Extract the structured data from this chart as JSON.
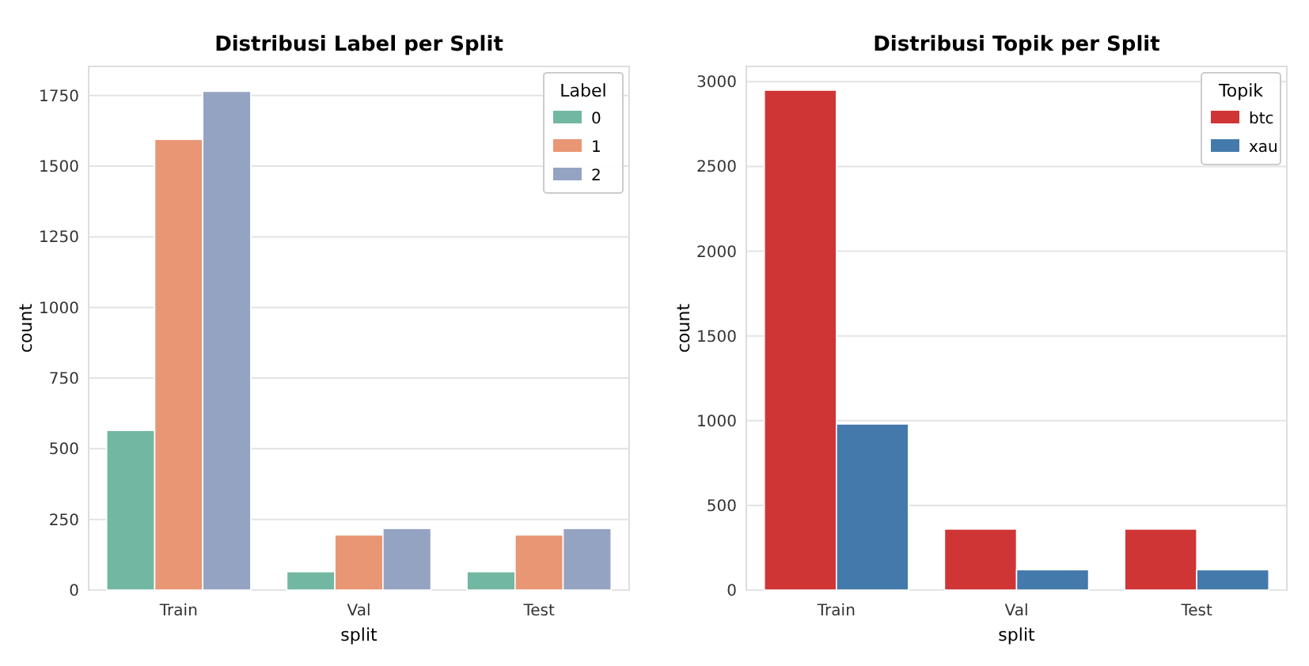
{
  "chart_data": [
    {
      "type": "bar",
      "title": "Distribusi Label per Split",
      "xlabel": "split",
      "ylabel": "count",
      "legend_title": "Label",
      "categories": [
        "Train",
        "Val",
        "Test"
      ],
      "series": [
        {
          "name": "0",
          "color": "#72b7a1",
          "values": [
            565,
            65,
            65
          ]
        },
        {
          "name": "1",
          "color": "#e99675",
          "values": [
            1595,
            195,
            195
          ]
        },
        {
          "name": "2",
          "color": "#95a3c3",
          "values": [
            1765,
            218,
            218
          ]
        }
      ],
      "ylim": [
        0,
        1853
      ],
      "yticks": [
        0,
        250,
        500,
        750,
        1000,
        1250,
        1500,
        1750
      ],
      "grid": "y",
      "legend": "top right"
    },
    {
      "type": "bar",
      "title": "Distribusi Topik per Split",
      "xlabel": "split",
      "ylabel": "count",
      "legend_title": "Topik",
      "categories": [
        "Train",
        "Val",
        "Test"
      ],
      "series": [
        {
          "name": "btc",
          "color": "#d03536",
          "values": [
            2950,
            360,
            360
          ]
        },
        {
          "name": "xau",
          "color": "#4479ab",
          "values": [
            980,
            120,
            120
          ]
        }
      ],
      "ylim": [
        0,
        3090
      ],
      "yticks": [
        0,
        500,
        1000,
        1500,
        2000,
        2500,
        3000
      ],
      "grid": "y",
      "legend": "top right"
    }
  ]
}
